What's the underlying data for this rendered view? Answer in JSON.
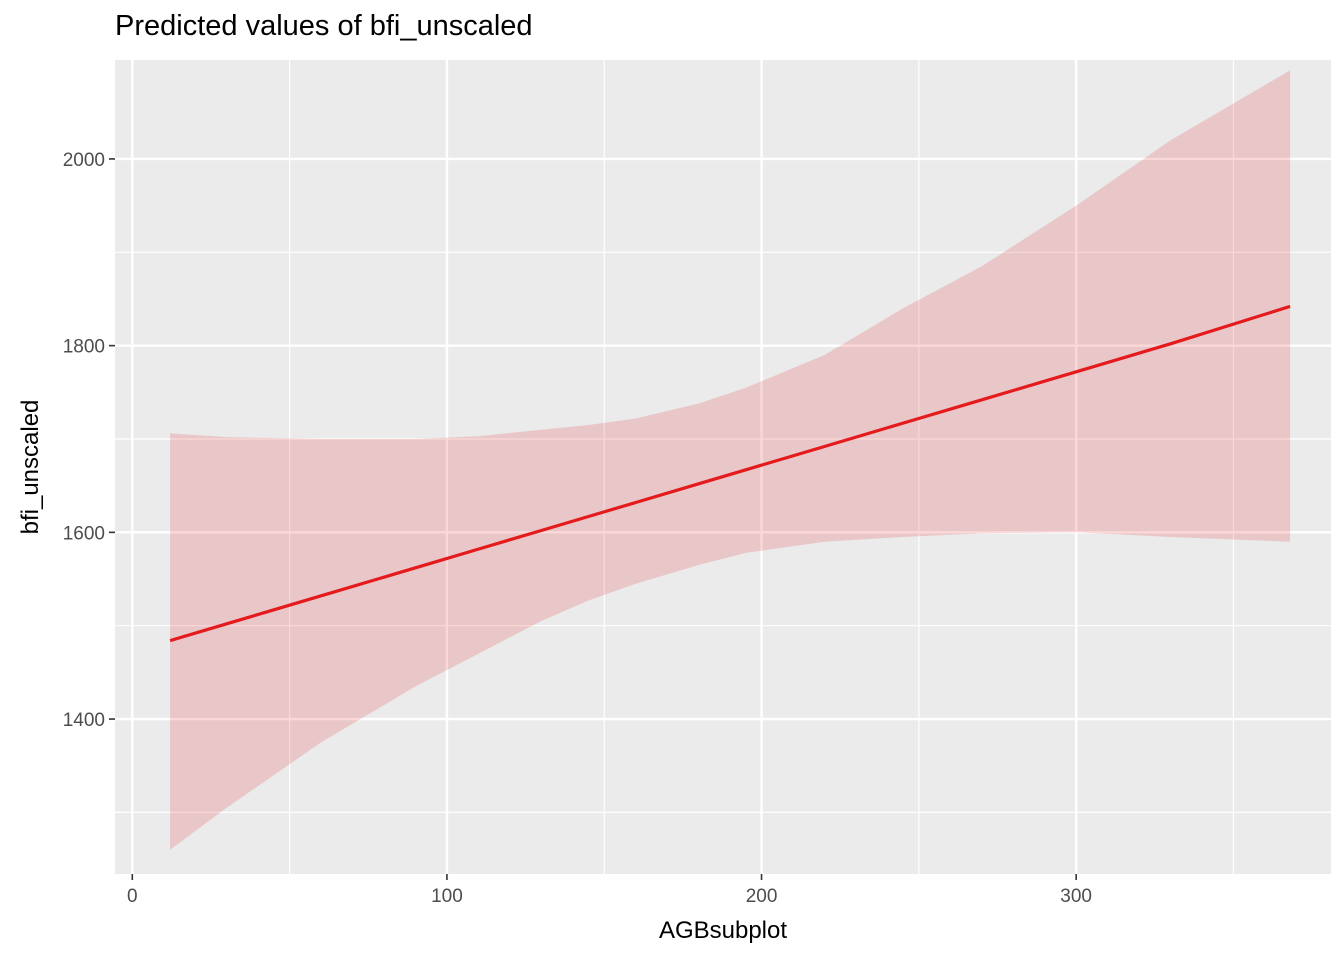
{
  "chart_data": {
    "type": "line",
    "title": "Predicted values of bfi_unscaled",
    "xlabel": "AGBsubplot",
    "ylabel": "bfi_unscaled",
    "xlim": [
      -5.5,
      381
    ],
    "ylim": [
      1234,
      2106
    ],
    "x_ticks": [
      0,
      100,
      200,
      300
    ],
    "x_tick_labels": [
      "0",
      "100",
      "200",
      "300"
    ],
    "x_minor": [
      50,
      150,
      250,
      350
    ],
    "y_ticks": [
      1400,
      1600,
      1800,
      2000
    ],
    "y_tick_labels": [
      "1400",
      "1600",
      "1800",
      "2000"
    ],
    "y_minor": [
      1300,
      1500,
      1700,
      1900
    ],
    "grid": true,
    "line_color": "#e41a1c",
    "ribbon_color": "#e41a1c",
    "panel_color": "#ebebeb",
    "series": [
      {
        "x": [
          12,
          30,
          60,
          90,
          110,
          130,
          145,
          160,
          180,
          195,
          220,
          245,
          270,
          300,
          330,
          368
        ],
        "y": [
          1484,
          1502,
          1532,
          1562,
          1582,
          1602,
          1617,
          1632,
          1652,
          1667,
          1692,
          1717,
          1742,
          1772,
          1802,
          1842
        ],
        "lower": [
          1260,
          1305,
          1375,
          1435,
          1470,
          1505,
          1527,
          1545,
          1565,
          1578,
          1590,
          1595,
          1599,
          1600,
          1595,
          1590
        ],
        "upper": [
          1706,
          1702,
          1700,
          1700,
          1703,
          1710,
          1715,
          1722,
          1738,
          1755,
          1790,
          1840,
          1885,
          1950,
          2020,
          2095
        ]
      }
    ]
  }
}
